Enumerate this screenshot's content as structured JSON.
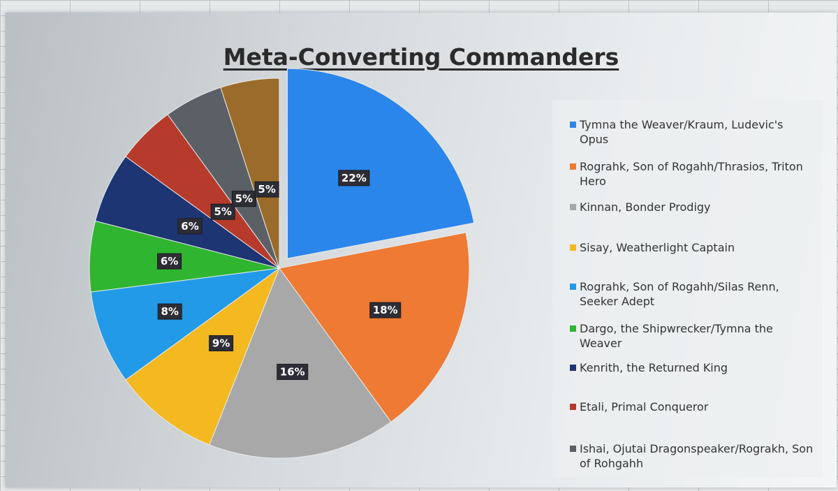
{
  "chart_data": {
    "type": "pie",
    "title": "Meta-Converting Commanders",
    "legend_position": "right",
    "slices": [
      {
        "name": "Tymna the Weaver/Kraum, Ludevic's Opus",
        "value": 22,
        "label": "22%",
        "color": "#2a86ea"
      },
      {
        "name": "Rograhk, Son of Rogahh/Thrasios, Triton Hero",
        "value": 18,
        "label": "18%",
        "color": "#ee7a33"
      },
      {
        "name": "Kinnan, Bonder Prodigy",
        "value": 16,
        "label": "16%",
        "color": "#a8a8a8"
      },
      {
        "name": "Sisay, Weatherlight Captain",
        "value": 9,
        "label": "9%",
        "color": "#f4b820"
      },
      {
        "name": "Rograhk, Son of Rogahh/Silas Renn, Seeker Adept",
        "value": 8,
        "label": "8%",
        "color": "#229ae8"
      },
      {
        "name": "Dargo, the Shipwrecker/Tymna the Weaver",
        "value": 6,
        "label": "6%",
        "color": "#2fb530"
      },
      {
        "name": "Kenrith, the Returned King",
        "value": 6,
        "label": "6%",
        "color": "#1d3573"
      },
      {
        "name": "Etali, Primal Conqueror",
        "value": 5,
        "label": "5%",
        "color": "#b63b2c"
      },
      {
        "name": "Ishai, Ojutai Dragonspeaker/Rograkh, Son of Rohgahh",
        "value": 5,
        "label": "5%",
        "color": "#5a6065"
      },
      {
        "name": "",
        "value": 5,
        "label": "5%",
        "color": "#9a6b2a"
      }
    ]
  }
}
